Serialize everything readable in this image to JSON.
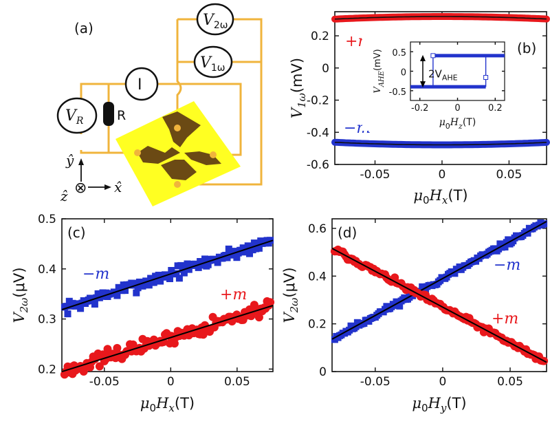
{
  "colors": {
    "red": "#e8181c",
    "blue": "#2233cc",
    "fit": "#000000",
    "wire": "#f0b43c",
    "chip": "#ffff22",
    "electrode": "#6b4a14",
    "resistor": "#111111"
  },
  "schematic": {
    "panel_label": "(a)",
    "meter_v2w": {
      "base": "V",
      "sub": "2ω"
    },
    "meter_v1w": {
      "base": "V",
      "sub": "1ω"
    },
    "meter_i": "I",
    "meter_vr": {
      "base": "V",
      "sub": "R"
    },
    "resistor_label": "R",
    "axis_y": "ŷ",
    "axis_x": "x̂",
    "axis_z": "ẑ",
    "into_page_symbol": "⊗"
  },
  "chart_data": [
    {
      "id": "b",
      "type": "line",
      "panel_label": "(b)",
      "xlabel": {
        "pre": "μ",
        "sub0": "0",
        "var": "H",
        "varsub": "x",
        "unit": "(T)"
      },
      "ylabel": {
        "var": "V",
        "sub": "1ω",
        "unit": "(mV)"
      },
      "xlim": [
        -0.08,
        0.078
      ],
      "ylim": [
        -0.6,
        0.35
      ],
      "xticks": [
        -0.05,
        0,
        0.05
      ],
      "xtick_labels": [
        "-0.05",
        "0",
        "0.05"
      ],
      "yticks": [
        -0.6,
        -0.4,
        -0.2,
        0,
        0.2
      ],
      "ytick_labels": [
        "-0.6",
        "-0.4",
        "-0.2",
        "0",
        "0.2"
      ],
      "series": [
        {
          "name": "+m",
          "label": "+m",
          "color": "#e8181c",
          "curvature": -2.5,
          "offset": 0.32
        },
        {
          "name": "-m",
          "label": "−m",
          "color": "#2233cc",
          "curvature": 2.5,
          "offset": -0.478
        }
      ],
      "inset": {
        "type": "line",
        "xlabel": {
          "pre": "μ",
          "sub0": "0",
          "var": "H",
          "varsub": "z",
          "unit": "(T)"
        },
        "ylabel": {
          "var": "V",
          "sub": "AHE",
          "unit": "(mV)"
        },
        "xlim": [
          -0.25,
          0.25
        ],
        "ylim": [
          -0.75,
          0.75
        ],
        "xticks": [
          -0.2,
          0,
          0.2
        ],
        "xtick_labels": [
          "-0.2",
          "0",
          "0.2"
        ],
        "yticks": [
          -0.5,
          0,
          0.5
        ],
        "ytick_labels": [
          "-0.5",
          "0",
          "0.5"
        ],
        "annotation": {
          "text": "2V",
          "sub": "AHE"
        },
        "upper_value": 0.4,
        "lower_value": -0.4,
        "switch_down": -0.13,
        "switch_up": 0.15
      }
    },
    {
      "id": "c",
      "type": "scatter",
      "panel_label": "(c)",
      "xlabel": {
        "pre": "μ",
        "sub0": "0",
        "var": "H",
        "varsub": "x",
        "unit": "(T)"
      },
      "ylabel": {
        "var": "V",
        "sub": "2ω",
        "unit": "(μV)"
      },
      "xlim": [
        -0.082,
        0.077
      ],
      "ylim": [
        0.195,
        0.5
      ],
      "xticks": [
        -0.05,
        0,
        0.05
      ],
      "xtick_labels": [
        "-0.05",
        "0",
        "0.05"
      ],
      "yticks": [
        0.2,
        0.3,
        0.4,
        0.5
      ],
      "ytick_labels": [
        "0.2",
        "0.3",
        "0.4",
        "0.5"
      ],
      "series": [
        {
          "name": "-m",
          "label": "−m",
          "color": "#2233cc",
          "marker": "square",
          "intercept": 0.39,
          "slope": 0.87,
          "noise": 0.006
        },
        {
          "name": "+m",
          "label": "+m",
          "color": "#e8181c",
          "marker": "circle",
          "intercept": 0.263,
          "slope": 0.83,
          "noise": 0.007
        }
      ]
    },
    {
      "id": "d",
      "type": "scatter",
      "panel_label": "(d)",
      "xlabel": {
        "pre": "μ",
        "sub0": "0",
        "var": "H",
        "varsub": "y",
        "unit": "(T)"
      },
      "ylabel": {
        "var": "V",
        "sub": "2ω",
        "unit": "(μV)"
      },
      "xlim": [
        -0.082,
        0.077
      ],
      "ylim": [
        0.0,
        0.64
      ],
      "xticks": [
        -0.05,
        0,
        0.05
      ],
      "xtick_labels": [
        "-0.05",
        "0",
        "0.05"
      ],
      "yticks": [
        0,
        0.2,
        0.4,
        0.6
      ],
      "ytick_labels": [
        "0",
        "0.2",
        "0.4",
        "0.6"
      ],
      "series": [
        {
          "name": "-m",
          "label": "−m",
          "color": "#2233cc",
          "marker": "square",
          "intercept": 0.39,
          "slope": 3.1,
          "noise": 0.006
        },
        {
          "name": "+m",
          "label": "+m",
          "color": "#e8181c",
          "marker": "circle",
          "intercept": 0.27,
          "slope": -3.0,
          "noise": 0.006
        }
      ]
    }
  ]
}
